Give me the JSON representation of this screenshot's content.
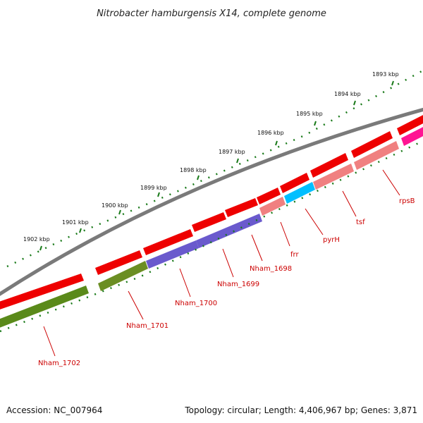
{
  "title": "Nitrobacter hamburgensis X14, complete genome",
  "footer": {
    "accession": "Accession: NC_007964",
    "summary": "Topology: circular; Length: 4,406,967 bp; Genes: 3,871"
  },
  "scale": {
    "ticks": [
      "1893 kbp",
      "1894 kbp",
      "1895 kbp",
      "1896 kbp",
      "1897 kbp",
      "1898 kbp",
      "1899 kbp",
      "1900 kbp",
      "1901 kbp",
      "1902 kbp"
    ]
  },
  "colors": {
    "backbone": "#808080",
    "gene_red": "#ee0000",
    "scale_green": "#1a7a1a",
    "label_red": "#cc0000",
    "label_line": "#cc0000"
  },
  "genes": [
    {
      "name": "Nham_1702",
      "color": "#5a8a1a"
    },
    {
      "name": "Nham_1701",
      "color": "#6b8e23"
    },
    {
      "name": "Nham_1700",
      "color": "#6a5acd"
    },
    {
      "name": "Nham_1699",
      "color": "#6a5acd"
    },
    {
      "name": "Nham_1698",
      "color": "#ee0000"
    },
    {
      "name": "frr",
      "color": "#f08080"
    },
    {
      "name": "pyrH",
      "color": "#00bfff"
    },
    {
      "name": "tsf",
      "color": "#f08080"
    },
    {
      "name": "rpsB",
      "color": "#ff1493"
    }
  ]
}
